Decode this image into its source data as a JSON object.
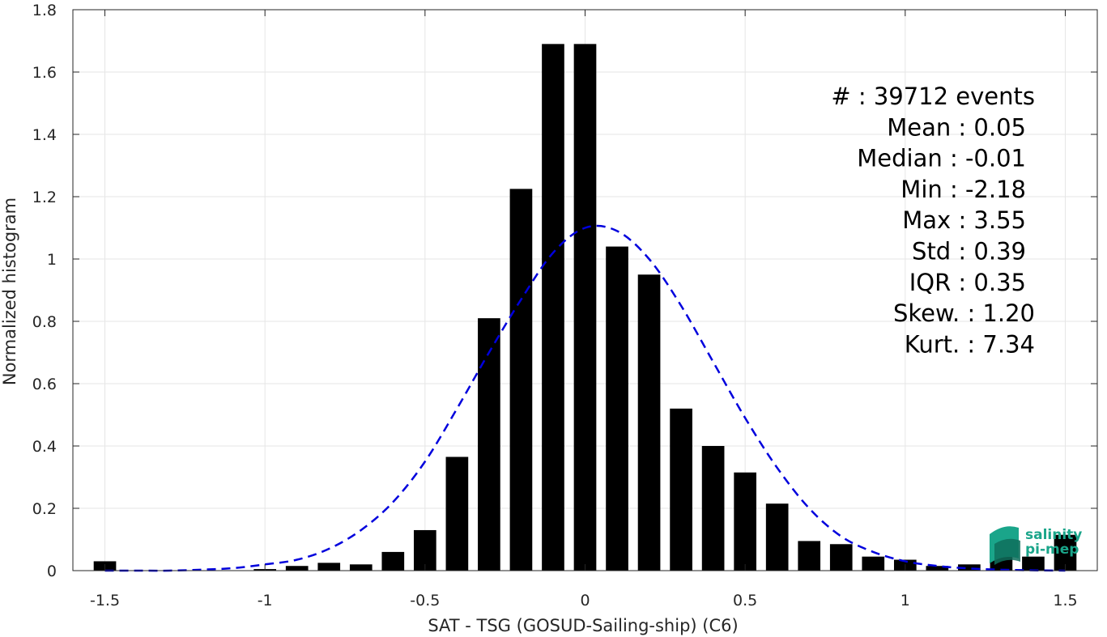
{
  "chart_data": {
    "type": "bar",
    "xlabel": "SAT - TSG (GOSUD-Sailing-ship) (C6)",
    "ylabel": "Normalized histogram",
    "xlim": [
      -1.6,
      1.6
    ],
    "ylim": [
      0,
      1.8
    ],
    "xticks": [
      -1.5,
      -1,
      -0.5,
      0,
      0.5,
      1,
      1.5
    ],
    "xtick_labels": [
      "-1.5",
      "-1",
      "-0.5",
      "0",
      "0.5",
      "1",
      "1.5"
    ],
    "yticks": [
      0,
      0.2,
      0.4,
      0.6,
      0.8,
      1,
      1.2,
      1.4,
      1.6,
      1.8
    ],
    "ytick_labels": [
      "0",
      "0.2",
      "0.4",
      "0.6",
      "0.8",
      "1",
      "1.2",
      "1.4",
      "1.6",
      "1.8"
    ],
    "grid": true,
    "bin_width": 0.1,
    "bars": {
      "name": "histogram",
      "color": "#000000",
      "x": [
        -1.5,
        -1.4,
        -1.3,
        -1.2,
        -1.1,
        -1.0,
        -0.9,
        -0.8,
        -0.7,
        -0.6,
        -0.5,
        -0.4,
        -0.3,
        -0.2,
        -0.1,
        0.0,
        0.1,
        0.2,
        0.3,
        0.4,
        0.5,
        0.6,
        0.7,
        0.8,
        0.9,
        1.0,
        1.1,
        1.2,
        1.3,
        1.4,
        1.5
      ],
      "values": [
        0.03,
        0,
        0,
        0,
        0,
        0.005,
        0.015,
        0.025,
        0.02,
        0.06,
        0.13,
        0.365,
        0.81,
        1.225,
        1.69,
        1.69,
        1.04,
        0.95,
        0.52,
        0.4,
        0.315,
        0.215,
        0.095,
        0.085,
        0.045,
        0.035,
        0.015,
        0.02,
        0.045,
        0.045,
        0.115
      ]
    },
    "curve": {
      "name": "gaussian fit",
      "color": "#0000dd",
      "style": "dashed",
      "x": [
        -1.5,
        -1.4,
        -1.3,
        -1.2,
        -1.1,
        -1.0,
        -0.9,
        -0.8,
        -0.7,
        -0.6,
        -0.5,
        -0.4,
        -0.3,
        -0.2,
        -0.1,
        0.0,
        0.1,
        0.2,
        0.3,
        0.4,
        0.5,
        0.6,
        0.7,
        0.8,
        0.9,
        1.0,
        1.1,
        1.2,
        1.3,
        1.4,
        1.5
      ],
      "values": [
        0.0,
        0.0,
        0.0,
        0.003,
        0.008,
        0.02,
        0.035,
        0.07,
        0.13,
        0.22,
        0.35,
        0.52,
        0.7,
        0.87,
        1.02,
        1.1,
        1.09,
        1.0,
        0.85,
        0.67,
        0.49,
        0.33,
        0.2,
        0.11,
        0.06,
        0.03,
        0.015,
        0.007,
        0.003,
        0.001,
        0.0
      ]
    },
    "annotations": [
      "#  : 39712 events",
      "Mean : 0.05",
      "Median : -0.01",
      "Min : -2.18",
      "Max : 3.55",
      "Std : 0.39",
      "IQR : 0.35",
      "Skew. : 1.20",
      "Kurt. : 7.34"
    ]
  },
  "logo": {
    "line1": "salinity",
    "line2": "pi-mep",
    "colors": [
      "#1aa58a",
      "#0f6f5c",
      "#2bbfa0"
    ]
  }
}
